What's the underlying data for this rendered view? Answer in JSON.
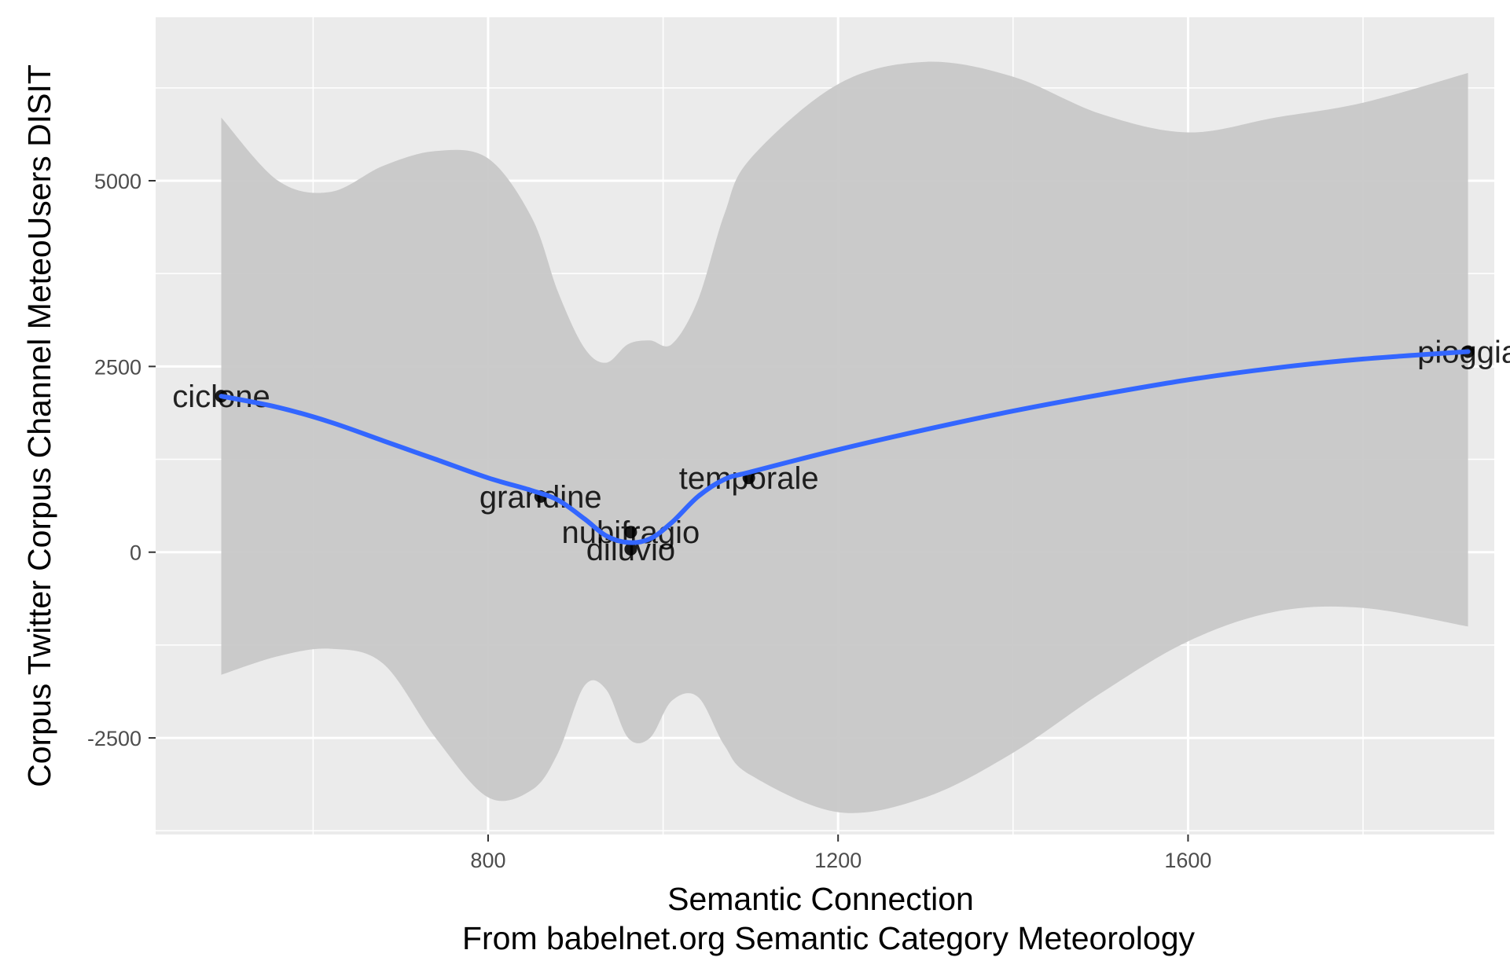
{
  "chart_data": {
    "type": "scatter",
    "xlabel": "Semantic Connection",
    "xlabel_sub": "From babelnet.org Semantic Category Meteorology",
    "ylabel": "Corpus Twitter Corpus Channel MeteoUsers DISIT",
    "xlim": [
      420,
      1950
    ],
    "ylim": [
      -3800,
      7200
    ],
    "x_ticks": [
      800,
      1200,
      1600
    ],
    "y_ticks": [
      -2500,
      0,
      2500,
      5000
    ],
    "grid": true,
    "legend": "none",
    "colors": {
      "panel": "#ebebeb",
      "grid": "#ffffff",
      "smooth_line": "#3366ff",
      "ribbon": "#c8c8c8",
      "point": "#1a1a1a",
      "label": "#000000"
    },
    "points": [
      {
        "label": "ciclone",
        "x": 495,
        "y": 2100
      },
      {
        "label": "grandine",
        "x": 860,
        "y": 750
      },
      {
        "label": "nubifragio",
        "x": 963,
        "y": 270
      },
      {
        "label": "diluvio",
        "x": 963,
        "y": 40
      },
      {
        "label": "temporale",
        "x": 1098,
        "y": 1000
      },
      {
        "label": "pioggia",
        "x": 1920,
        "y": 2700
      }
    ],
    "smooth": {
      "method": "loess",
      "x": [
        495,
        560,
        620,
        680,
        740,
        800,
        850,
        880,
        910,
        935,
        960,
        985,
        1010,
        1040,
        1070,
        1100,
        1200,
        1300,
        1400,
        1500,
        1600,
        1700,
        1800,
        1920
      ],
      "y": [
        2100,
        1950,
        1750,
        1500,
        1250,
        1000,
        830,
        700,
        450,
        220,
        130,
        180,
        400,
        750,
        980,
        1080,
        1380,
        1650,
        1900,
        2120,
        2320,
        2480,
        2600,
        2700
      ],
      "lower": [
        -1650,
        -1400,
        -1300,
        -1500,
        -2500,
        -3300,
        -3200,
        -2700,
        -1800,
        -1850,
        -2500,
        -2500,
        -2000,
        -1950,
        -2600,
        -3000,
        -3500,
        -3300,
        -2700,
        -1900,
        -1200,
        -800,
        -750,
        -1000
      ],
      "upper": [
        5850,
        5000,
        4850,
        5200,
        5400,
        5300,
        4500,
        3500,
        2750,
        2550,
        2800,
        2850,
        2800,
        3400,
        4550,
        5300,
        6300,
        6600,
        6400,
        5900,
        5650,
        5850,
        6050,
        6450
      ]
    }
  }
}
